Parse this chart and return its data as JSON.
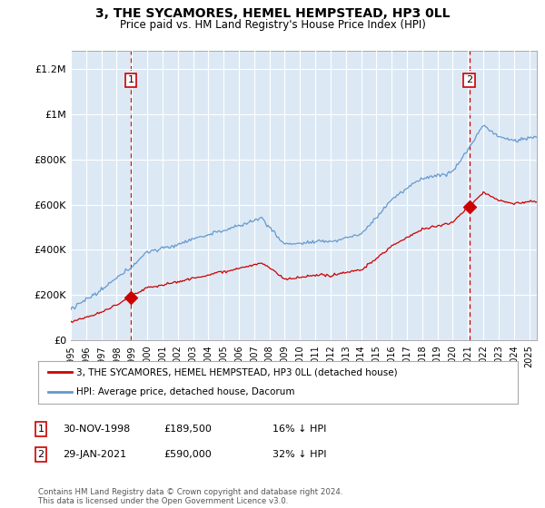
{
  "title": "3, THE SYCAMORES, HEMEL HEMPSTEAD, HP3 0LL",
  "subtitle": "Price paid vs. HM Land Registry's House Price Index (HPI)",
  "legend_line1": "3, THE SYCAMORES, HEMEL HEMPSTEAD, HP3 0LL (detached house)",
  "legend_line2": "HPI: Average price, detached house, Dacorum",
  "sale1_date": "30-NOV-1998",
  "sale1_price": "£189,500",
  "sale1_hpi": "16% ↓ HPI",
  "sale1_year": 1998.92,
  "sale1_value": 189500,
  "sale2_date": "29-JAN-2021",
  "sale2_price": "£590,000",
  "sale2_hpi": "32% ↓ HPI",
  "sale2_year": 2021.08,
  "sale2_value": 590000,
  "footer": "Contains HM Land Registry data © Crown copyright and database right 2024.\nThis data is licensed under the Open Government Licence v3.0.",
  "plot_bg_color": "#dce9f5",
  "fig_bg_color": "#ffffff",
  "red_line_color": "#cc0000",
  "blue_line_color": "#6699cc",
  "grid_color": "#ffffff",
  "dashed_line_color": "#cc0000",
  "xlim": [
    1995,
    2025.5
  ],
  "ylim": [
    0,
    1280000
  ],
  "yticks": [
    0,
    200000,
    400000,
    600000,
    800000,
    1000000,
    1200000
  ],
  "ytick_labels": [
    "£0",
    "£200K",
    "£400K",
    "£600K",
    "£800K",
    "£1M",
    "£1.2M"
  ],
  "xticks": [
    1995,
    1996,
    1997,
    1998,
    1999,
    2000,
    2001,
    2002,
    2003,
    2004,
    2005,
    2006,
    2007,
    2008,
    2009,
    2010,
    2011,
    2012,
    2013,
    2014,
    2015,
    2016,
    2017,
    2018,
    2019,
    2020,
    2021,
    2022,
    2023,
    2024,
    2025
  ]
}
